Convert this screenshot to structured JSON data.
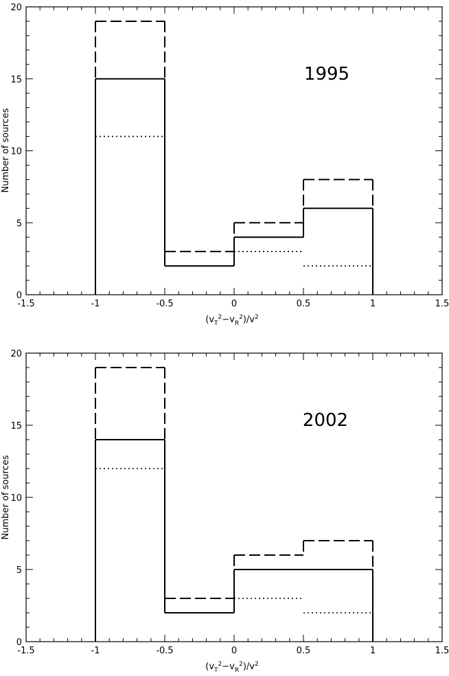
{
  "chart_data": [
    {
      "type": "bar",
      "annotation": "1995",
      "ylabel": "Number of sources",
      "xlim": [
        -1.5,
        1.5
      ],
      "ylim": [
        0,
        20
      ],
      "xticks": [
        "-1.5",
        "-1",
        "-0.5",
        "0",
        "0.5",
        "1",
        "1.5"
      ],
      "yticks": [
        "0",
        "5",
        "10",
        "15",
        "20"
      ],
      "bin_edges": [
        -1,
        -0.5,
        0,
        0.5,
        1
      ],
      "series": [
        {
          "style": "dashed",
          "values": [
            19,
            3,
            5,
            8
          ]
        },
        {
          "style": "solid",
          "values": [
            15,
            2,
            4,
            6
          ]
        },
        {
          "style": "dotted",
          "values": [
            11,
            0,
            3,
            2
          ]
        }
      ]
    },
    {
      "type": "bar",
      "annotation": "2002",
      "ylabel": "Number of sources",
      "xlim": [
        -1.5,
        1.5
      ],
      "ylim": [
        0,
        20
      ],
      "xticks": [
        "-1.5",
        "-1",
        "-0.5",
        "0",
        "0.5",
        "1",
        "1.5"
      ],
      "yticks": [
        "0",
        "5",
        "10",
        "15",
        "20"
      ],
      "bin_edges": [
        -1,
        -0.5,
        0,
        0.5,
        1
      ],
      "series": [
        {
          "style": "dashed",
          "values": [
            19,
            3,
            6,
            7
          ]
        },
        {
          "style": "solid",
          "values": [
            14,
            2,
            5,
            5
          ]
        },
        {
          "style": "dotted",
          "values": [
            12,
            0,
            3,
            2
          ]
        }
      ]
    }
  ]
}
